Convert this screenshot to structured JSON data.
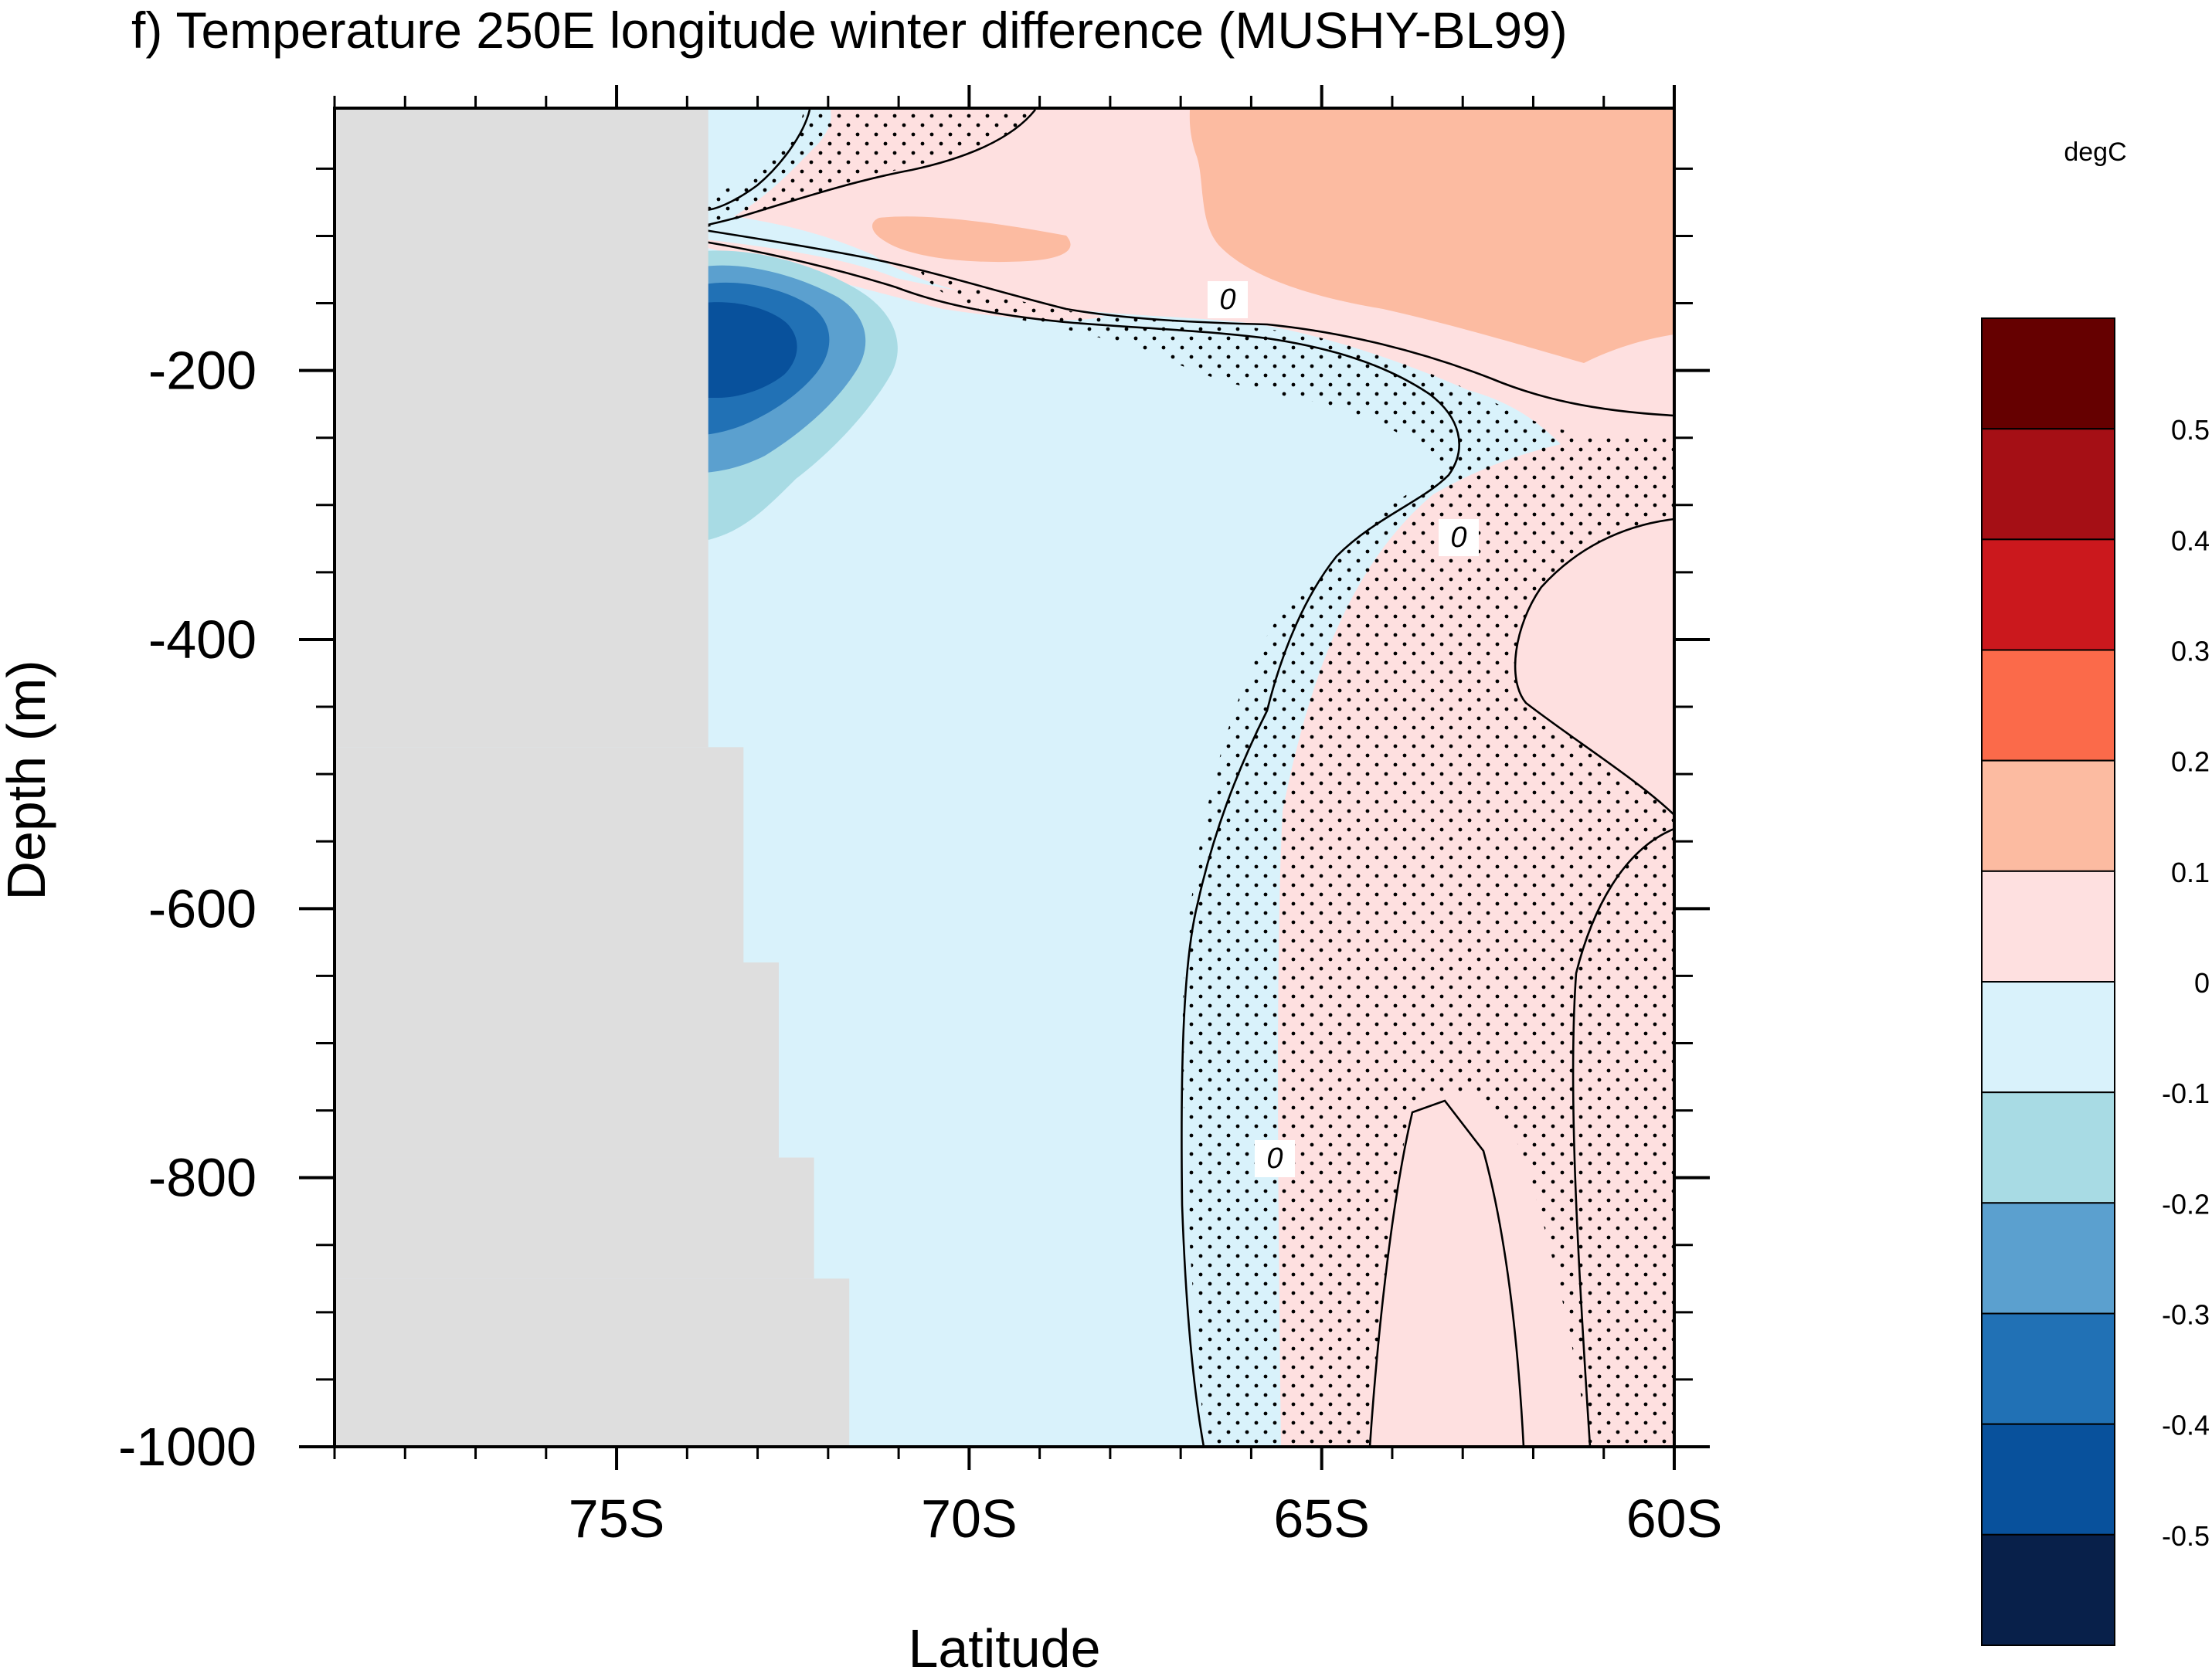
{
  "chart_data": {
    "type": "heatmap",
    "title": "f) Temperature 250E longitude winter difference (MUSHY-BL99)",
    "xlabel": "Latitude",
    "ylabel": "Depth (m)",
    "units_label": "degC",
    "x_ticks": [
      {
        "value": -75,
        "label": "75S"
      },
      {
        "value": -70,
        "label": "70S"
      },
      {
        "value": -65,
        "label": "65S"
      },
      {
        "value": -60,
        "label": "60S"
      }
    ],
    "y_ticks": [
      {
        "value": -200,
        "label": "-200"
      },
      {
        "value": -400,
        "label": "-400"
      },
      {
        "value": -600,
        "label": "-600"
      },
      {
        "value": -800,
        "label": "-800"
      },
      {
        "value": -1000,
        "label": "-1000"
      }
    ],
    "xlim": [
      -79,
      -60
    ],
    "ylim": [
      -1000,
      -5
    ],
    "grid": false,
    "legend": "right colorbar",
    "colorbar": {
      "levels": [
        "0.5",
        "0.4",
        "0.3",
        "0.2",
        "0.1",
        "0",
        "-0.1",
        "-0.2",
        "-0.3",
        "-0.4",
        "-0.5"
      ],
      "colors": [
        "#650000",
        "#a50f15",
        "#cb181d",
        "#fb6a4a",
        "#fcbba1",
        "#fee0e0",
        "#d9f2fb",
        "#a8dbe4",
        "#5ba0cf",
        "#2171b5",
        "#08519c",
        "#08204a"
      ]
    },
    "contour_labels": [
      "0",
      "0",
      "0"
    ],
    "colors": {
      "land": "#dedede",
      "stipple": "#000000"
    },
    "land_mask": [
      {
        "depth_from": -5,
        "depth_to": -480,
        "lat_to": -73.7
      },
      {
        "depth_from": -480,
        "depth_to": -640,
        "lat_to": -73.2
      },
      {
        "depth_from": -640,
        "depth_to": -785,
        "lat_to": -72.7
      },
      {
        "depth_from": -785,
        "depth_to": -875,
        "lat_to": -72.2
      },
      {
        "depth_from": -875,
        "depth_to": -1000,
        "lat_to": -71.7
      }
    ],
    "regions": [
      {
        "value": "-0.1 to 0",
        "color": "#d9f2fb",
        "label": "cold anomaly over shelf and slope, 73.7S to ~67S, 0 to -1000 m"
      },
      {
        "value": "0 to 0.1",
        "color": "#fee0e0",
        "label": "warm anomaly north of ~66S and in upper 150 m"
      },
      {
        "value": "0.1 to 0.2",
        "color": "#fcbba1",
        "label": "surface warm core 66S–60S, 0 to -180 m"
      },
      {
        "value": "-0.5 to -0.2",
        "color": "#2171b5",
        "label": "cold core at 73.5S near -180 m"
      }
    ]
  }
}
